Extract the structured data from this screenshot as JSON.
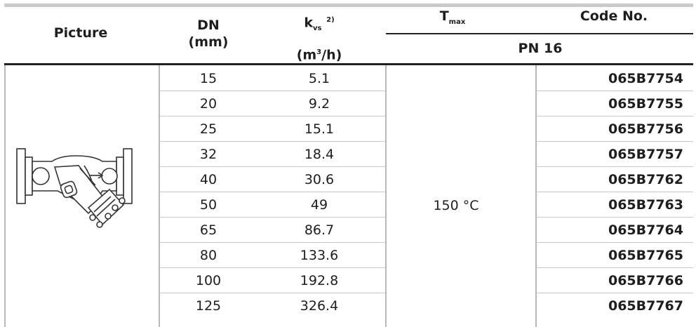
{
  "header": {
    "picture": "Picture",
    "dn_line1": "DN",
    "dn_line2": "(mm)",
    "kvs_k": "k",
    "kvs_sub": "vs",
    "kvs_sup": "2)",
    "kvs_unit_pre": "(m",
    "kvs_unit_sup": "3",
    "kvs_unit_post": "/h)",
    "tmax_t": "T",
    "tmax_sub": "max",
    "code": "Code No.",
    "pn": "PN 16"
  },
  "tmax_value": "150 °C",
  "rows": [
    {
      "dn": "15",
      "kvs": "5.1",
      "code": "065B7754"
    },
    {
      "dn": "20",
      "kvs": "9.2",
      "code": "065B7755"
    },
    {
      "dn": "25",
      "kvs": "15.1",
      "code": "065B7756"
    },
    {
      "dn": "32",
      "kvs": "18.4",
      "code": "065B7757"
    },
    {
      "dn": "40",
      "kvs": "30.6",
      "code": "065B7762"
    },
    {
      "dn": "50",
      "kvs": "49",
      "code": "065B7763"
    },
    {
      "dn": "65",
      "kvs": "86.7",
      "code": "065B7764"
    },
    {
      "dn": "80",
      "kvs": "133.6",
      "code": "065B7765"
    },
    {
      "dn": "100",
      "kvs": "192.8",
      "code": "065B7766"
    },
    {
      "dn": "125",
      "kvs": "326.4",
      "code": "065B7767"
    }
  ],
  "picture_icon": "strainer-valve-icon"
}
